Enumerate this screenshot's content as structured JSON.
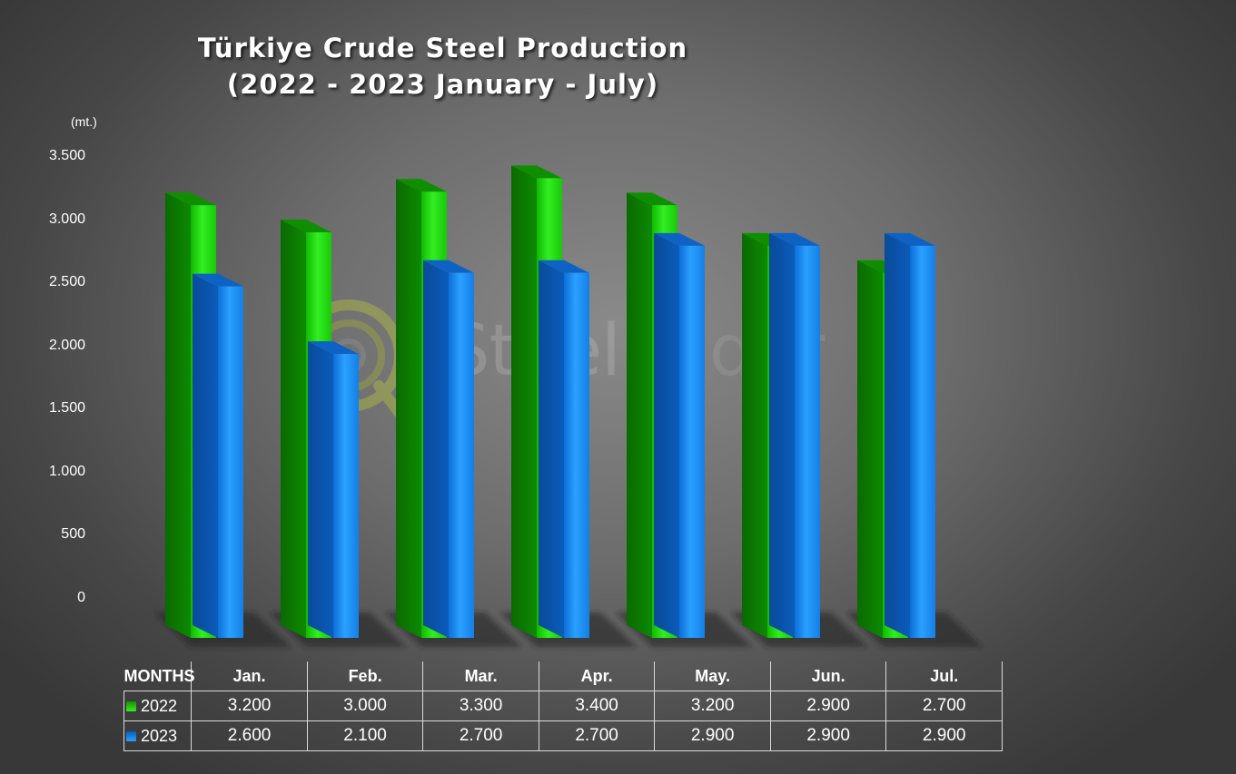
{
  "title_line1": "Türkiye Crude Steel Production",
  "title_line2": "(2022 - 2023 January - July)",
  "watermark": {
    "steel": "Steel",
    "radar": "Radar"
  },
  "colors": {
    "series_2022": "#22dd11",
    "series_2023": "#1c8ef0"
  },
  "chart_data": {
    "type": "bar",
    "title": "Türkiye Crude Steel Production (2022 - 2023 January - July)",
    "unit_label": "(mt.)",
    "ylim": [
      0,
      3500
    ],
    "yticks": [
      0,
      500,
      1000,
      1500,
      2000,
      2500,
      3000,
      3500
    ],
    "ytick_labels": [
      "0",
      "500",
      "1.000",
      "1.500",
      "2.000",
      "2.500",
      "3.000",
      "3.500"
    ],
    "categories": [
      "Jan.",
      "Feb.",
      "Mar.",
      "Apr.",
      "May.",
      "Jun.",
      "Jul."
    ],
    "series": [
      {
        "name": "2022",
        "values": [
          3200,
          3000,
          3300,
          3400,
          3200,
          2900,
          2700
        ],
        "labels": [
          "3.200",
          "3.000",
          "3.300",
          "3.400",
          "3.200",
          "2.900",
          "2.700"
        ]
      },
      {
        "name": "2023",
        "values": [
          2600,
          2100,
          2700,
          2700,
          2900,
          2900,
          2900
        ],
        "labels": [
          "2.600",
          "2.100",
          "2.700",
          "2.700",
          "2.900",
          "2.900",
          "2.900"
        ]
      }
    ],
    "legend": "data-table",
    "grid": false
  },
  "table": {
    "corner_label": "MONTHS"
  }
}
